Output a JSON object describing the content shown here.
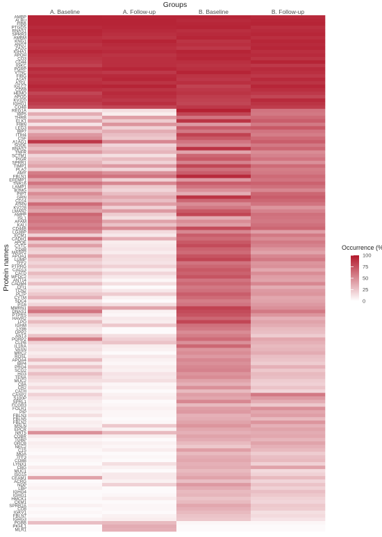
{
  "chart_data": {
    "type": "heatmap",
    "title": "",
    "xlabel": "Groups",
    "ylabel": "Protein names",
    "categories": [
      "A. Baseline",
      "A. Follow-up",
      "B. Baseline",
      "B. Follow-up"
    ],
    "legend": {
      "title": "Occurrence (%)",
      "ticks": [
        100,
        75,
        50,
        25,
        0
      ],
      "range": [
        0,
        100
      ],
      "low_color": "#ffffff",
      "high_color": "#b2182b",
      "placement": "right"
    },
    "proteins": [
      "AMBP",
      "ALBU",
      "FIBB",
      "PTGDS",
      "RNAS1",
      "SPRR3",
      "AMBM",
      "KNG1",
      "ANGT",
      "ZA2G",
      "IGHA1",
      "APOH",
      "CO3",
      "CD44",
      "IGKC",
      "PGRP",
      "VTNC",
      "FIBG",
      "A1AT",
      "A2GL",
      "IGLC2",
      "CD59",
      "HEMO",
      "APOD",
      "KV320",
      "IGHG1",
      "CO4B",
      "REG1A",
      "IBP5",
      "THRB",
      "ELK1",
      "FIBN",
      "LEG3",
      "IBP7",
      "ITIH4",
      "CSF",
      "A1AG1",
      "SODE",
      "RNAS2",
      "TNFR",
      "SCTM1",
      "PIGR",
      "SPRR1",
      "TIMP1",
      "PLA2",
      "AMY",
      "FBLN1",
      "EFEMP1",
      "TNR16",
      "LAMP1",
      "B2MG",
      "PIPT",
      "GRN",
      "CD14",
      "ATRN",
      "KV228",
      "LMAN2",
      "AMPP",
      "ISL1",
      "AFAM",
      "KALI",
      "CD44B",
      "LG3BP",
      "ECM1",
      "CADH1",
      "APOE",
      "CYTC",
      "CD48",
      "MASP2",
      "APOA1",
      "LUMP",
      "TFF2",
      "PTPRG",
      "CAD13",
      "CATD",
      "WFDC2",
      "ANT14",
      "CADM4",
      "CFI1",
      "TCN2",
      "PLTP",
      "CYTM",
      "SDC4",
      "PI16",
      "MMRN1",
      "DNAS1",
      "PTPRS",
      "HAVR2",
      "LPO",
      "IGHM",
      "LY86",
      "DPP2",
      "ANT3",
      "PGRP2",
      "CLPB",
      "IL1RA",
      "VASN",
      "MRC2",
      "ROSL",
      "APOA4",
      "IBP4",
      "PRG4",
      "SCG2",
      "HG3",
      "TENA",
      "MUC2",
      "C8A",
      "CR2",
      "CATH",
      "CASP2",
      "S100P",
      "SPRL1",
      "FCGR3",
      "FOLR1",
      "PIP",
      "FBLN3",
      "FBLN5",
      "FBLN2",
      "MSLN",
      "EPCR",
      "NRT5",
      "COBR",
      "TGBP",
      "GRCB",
      "NEC2",
      "C1S",
      "MGA",
      "TFF3",
      "CO8B",
      "LYNX1",
      "CBG",
      "MUC1",
      "ISG15",
      "CEAM1",
      "ACRG",
      "NDP",
      "LBP",
      "IGHG4",
      "IGHG1",
      "HMCK1",
      "CKM1",
      "SPRR2A",
      "CO8",
      "IGKV1",
      "FBLN7",
      "IGHG3",
      "PGBB",
      "PKHL1",
      "MLR1"
    ],
    "occurrence_percent": [
      [
        95,
        94,
        94,
        92
      ],
      [
        95,
        95,
        92,
        94
      ],
      [
        95,
        95,
        94,
        95
      ],
      [
        92,
        94,
        95,
        90
      ],
      [
        95,
        92,
        90,
        92
      ],
      [
        94,
        90,
        92,
        94
      ],
      [
        90,
        88,
        94,
        90
      ],
      [
        92,
        95,
        88,
        94
      ],
      [
        88,
        92,
        90,
        92
      ],
      [
        90,
        90,
        86,
        94
      ],
      [
        94,
        92,
        95,
        90
      ],
      [
        90,
        88,
        92,
        92
      ],
      [
        88,
        90,
        94,
        88
      ],
      [
        86,
        90,
        90,
        95
      ],
      [
        82,
        90,
        88,
        86
      ],
      [
        92,
        94,
        90,
        92
      ],
      [
        88,
        86,
        95,
        90
      ],
      [
        92,
        92,
        88,
        86
      ],
      [
        88,
        94,
        86,
        92
      ],
      [
        90,
        88,
        90,
        88
      ],
      [
        94,
        95,
        82,
        94
      ],
      [
        90,
        88,
        86,
        90
      ],
      [
        80,
        92,
        88,
        86
      ],
      [
        86,
        90,
        84,
        80
      ],
      [
        88,
        86,
        82,
        92
      ],
      [
        84,
        90,
        80,
        88
      ],
      [
        78,
        80,
        86,
        84
      ],
      [
        10,
        14,
        96,
        60
      ],
      [
        36,
        8,
        80,
        58
      ],
      [
        18,
        42,
        60,
        64
      ],
      [
        40,
        22,
        88,
        70
      ],
      [
        12,
        46,
        44,
        58
      ],
      [
        42,
        20,
        70,
        72
      ],
      [
        26,
        36,
        58,
        60
      ],
      [
        44,
        28,
        82,
        56
      ],
      [
        50,
        24,
        72,
        64
      ],
      [
        86,
        52,
        60,
        70
      ],
      [
        40,
        18,
        52,
        58
      ],
      [
        30,
        26,
        88,
        66
      ],
      [
        44,
        32,
        40,
        50
      ],
      [
        18,
        14,
        66,
        54
      ],
      [
        26,
        30,
        72,
        60
      ],
      [
        32,
        20,
        54,
        48
      ],
      [
        40,
        44,
        80,
        64
      ],
      [
        22,
        18,
        62,
        56
      ],
      [
        56,
        48,
        70,
        58
      ],
      [
        62,
        60,
        92,
        64
      ],
      [
        38,
        20,
        44,
        60
      ],
      [
        60,
        52,
        70,
        68
      ],
      [
        44,
        24,
        60,
        62
      ],
      [
        30,
        18,
        48,
        52
      ],
      [
        50,
        28,
        36,
        66
      ],
      [
        40,
        38,
        88,
        70
      ],
      [
        32,
        28,
        66,
        66
      ],
      [
        64,
        42,
        50,
        60
      ],
      [
        48,
        20,
        58,
        46
      ],
      [
        40,
        44,
        72,
        54
      ],
      [
        66,
        22,
        80,
        62
      ],
      [
        58,
        14,
        36,
        60
      ],
      [
        60,
        40,
        50,
        58
      ],
      [
        54,
        26,
        42,
        62
      ],
      [
        60,
        50,
        78,
        66
      ],
      [
        48,
        16,
        52,
        42
      ],
      [
        20,
        10,
        70,
        58
      ],
      [
        62,
        34,
        64,
        50
      ],
      [
        24,
        8,
        72,
        58
      ],
      [
        42,
        10,
        78,
        54
      ],
      [
        22,
        12,
        68,
        46
      ],
      [
        18,
        8,
        64,
        40
      ],
      [
        40,
        16,
        74,
        52
      ],
      [
        24,
        14,
        80,
        58
      ],
      [
        18,
        12,
        60,
        46
      ],
      [
        26,
        20,
        66,
        48
      ],
      [
        14,
        8,
        72,
        38
      ],
      [
        30,
        18,
        68,
        50
      ],
      [
        20,
        10,
        74,
        42
      ],
      [
        12,
        4,
        60,
        40
      ],
      [
        28,
        14,
        66,
        52
      ],
      [
        10,
        2,
        58,
        36
      ],
      [
        16,
        10,
        62,
        44
      ],
      [
        24,
        22,
        70,
        46
      ],
      [
        34,
        6,
        64,
        38
      ],
      [
        10,
        2,
        56,
        40
      ],
      [
        18,
        14,
        60,
        44
      ],
      [
        46,
        40,
        82,
        48
      ],
      [
        60,
        6,
        78,
        58
      ],
      [
        28,
        4,
        74,
        46
      ],
      [
        14,
        10,
        66,
        34
      ],
      [
        30,
        8,
        80,
        40
      ],
      [
        16,
        24,
        62,
        36
      ],
      [
        10,
        2,
        58,
        30
      ],
      [
        8,
        2,
        50,
        28
      ],
      [
        26,
        14,
        56,
        22
      ],
      [
        56,
        20,
        64,
        38
      ],
      [
        20,
        26,
        48,
        34
      ],
      [
        12,
        8,
        66,
        30
      ],
      [
        14,
        6,
        46,
        32
      ],
      [
        8,
        2,
        50,
        36
      ],
      [
        12,
        10,
        44,
        28
      ],
      [
        30,
        6,
        52,
        26
      ],
      [
        10,
        4,
        48,
        22
      ],
      [
        26,
        8,
        52,
        34
      ],
      [
        14,
        6,
        54,
        24
      ],
      [
        28,
        12,
        46,
        30
      ],
      [
        18,
        10,
        50,
        28
      ],
      [
        14,
        14,
        40,
        22
      ],
      [
        8,
        4,
        34,
        20
      ],
      [
        16,
        6,
        48,
        26
      ],
      [
        6,
        2,
        30,
        18
      ],
      [
        20,
        6,
        42,
        58
      ],
      [
        12,
        8,
        38,
        44
      ],
      [
        8,
        2,
        52,
        36
      ],
      [
        6,
        4,
        30,
        24
      ],
      [
        10,
        6,
        42,
        48
      ],
      [
        6,
        4,
        44,
        38
      ],
      [
        14,
        4,
        34,
        42
      ],
      [
        4,
        2,
        36,
        30
      ],
      [
        8,
        4,
        40,
        46
      ],
      [
        6,
        24,
        46,
        34
      ],
      [
        12,
        6,
        38,
        40
      ],
      [
        48,
        30,
        34,
        36
      ],
      [
        10,
        8,
        40,
        38
      ],
      [
        4,
        2,
        36,
        32
      ],
      [
        8,
        6,
        30,
        40
      ],
      [
        6,
        4,
        24,
        34
      ],
      [
        4,
        8,
        42,
        30
      ],
      [
        2,
        2,
        30,
        22
      ],
      [
        6,
        4,
        36,
        28
      ],
      [
        4,
        2,
        38,
        30
      ],
      [
        2,
        14,
        34,
        20
      ],
      [
        8,
        6,
        36,
        40
      ],
      [
        4,
        2,
        30,
        16
      ],
      [
        6,
        10,
        34,
        20
      ],
      [
        40,
        10,
        40,
        30
      ],
      [
        2,
        6,
        28,
        18
      ],
      [
        4,
        20,
        44,
        26
      ],
      [
        6,
        2,
        36,
        20
      ],
      [
        2,
        2,
        30,
        28
      ],
      [
        2,
        4,
        32,
        24
      ],
      [
        4,
        8,
        26,
        20
      ],
      [
        2,
        2,
        30,
        18
      ],
      [
        6,
        4,
        38,
        24
      ],
      [
        2,
        4,
        34,
        22
      ],
      [
        4,
        2,
        30,
        14
      ],
      [
        2,
        6,
        26,
        16
      ],
      [
        6,
        8,
        24,
        12
      ],
      [
        28,
        30,
        4,
        4
      ],
      [
        2,
        36,
        2,
        2
      ],
      [
        2,
        34,
        2,
        2
      ]
    ]
  }
}
